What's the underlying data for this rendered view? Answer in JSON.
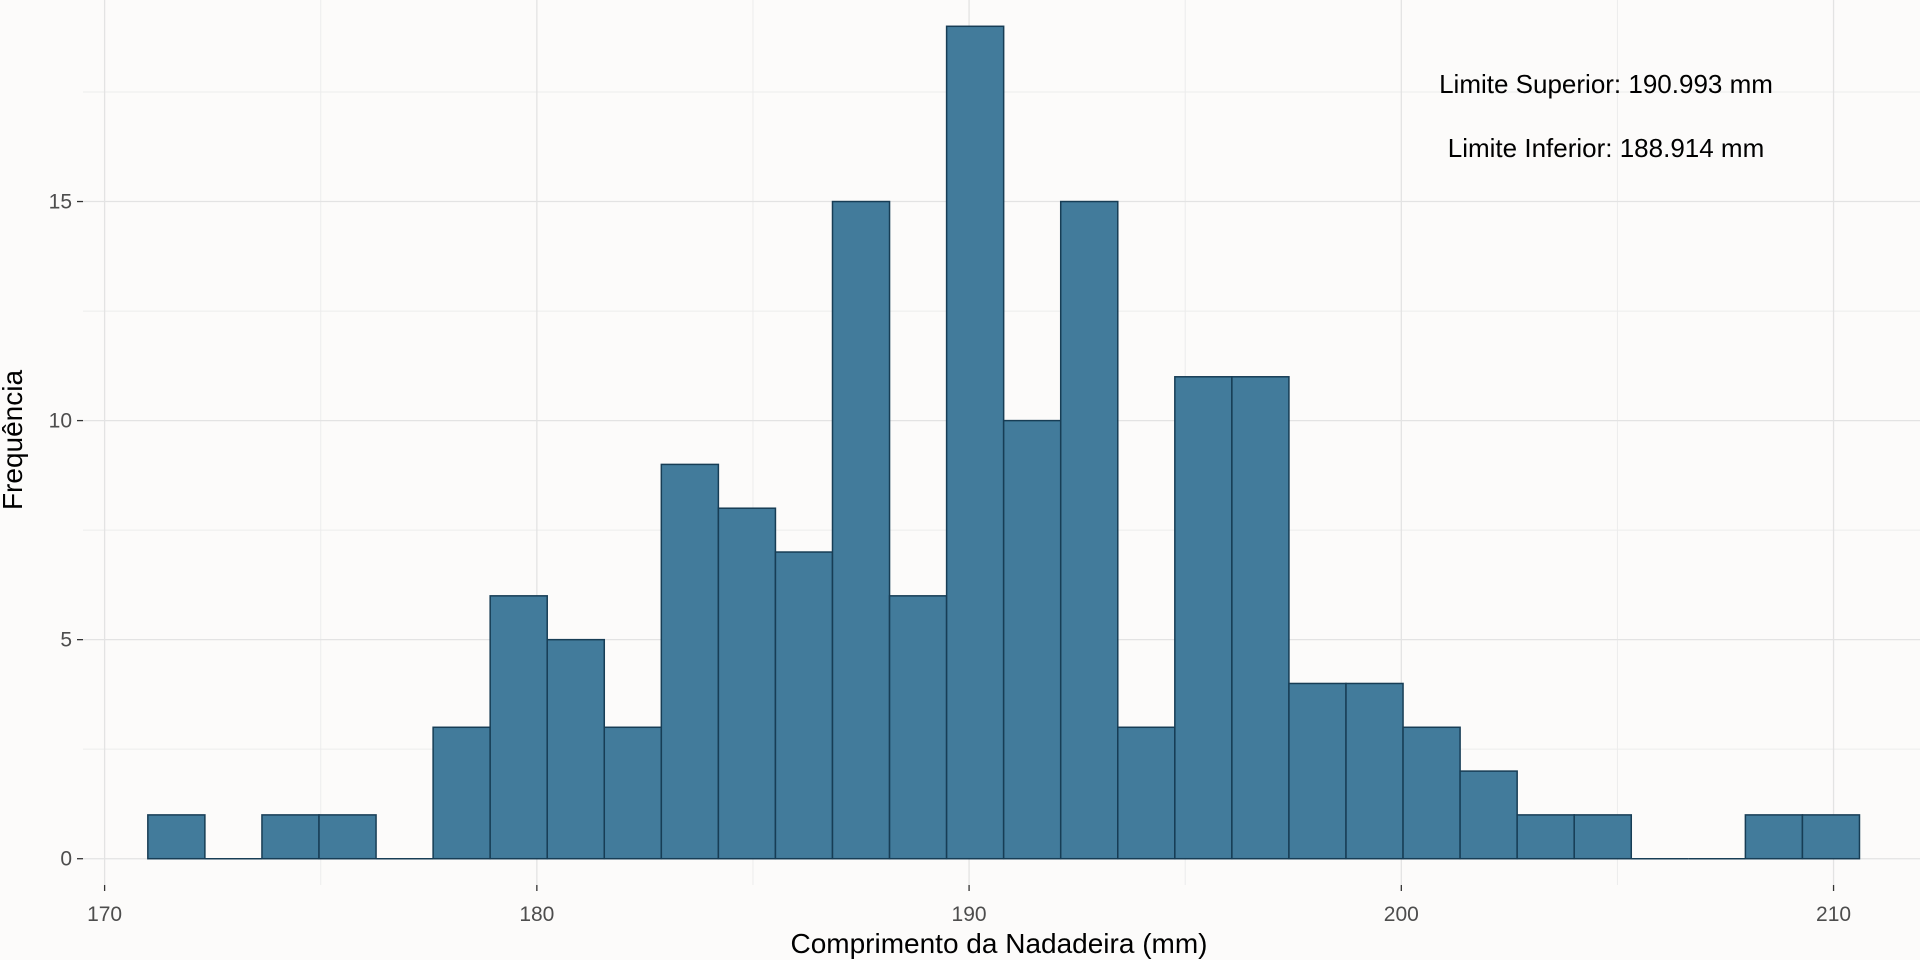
{
  "chart_data": {
    "type": "bar",
    "subtype": "histogram",
    "title": "",
    "xlabel": "Comprimento da Nadadeira (mm)",
    "ylabel": "Frequência",
    "xlim": [
      169.5,
      212.0
    ],
    "ylim": [
      -0.6,
      19.6
    ],
    "x_ticks": [
      170,
      180,
      190,
      200,
      210
    ],
    "y_ticks": [
      0,
      5,
      10,
      15
    ],
    "grid": true,
    "bin_edges": [
      171.0,
      172.32,
      173.64,
      174.96,
      176.28,
      177.6,
      178.92,
      180.24,
      181.56,
      182.88,
      184.2,
      185.52,
      186.84,
      188.16,
      189.48,
      190.8,
      192.12,
      193.44,
      194.76,
      196.08,
      197.4,
      198.72,
      200.04,
      201.36,
      202.68,
      204.0,
      205.32,
      206.64,
      207.96,
      209.28,
      210.6
    ],
    "values": [
      1,
      0,
      1,
      1,
      0,
      3,
      6,
      5,
      3,
      9,
      8,
      7,
      15,
      6,
      19,
      10,
      15,
      3,
      11,
      11,
      4,
      4,
      3,
      2,
      1,
      1,
      0,
      0,
      1,
      1
    ],
    "bar_color": "#427b9b",
    "bar_edge_color": "#173d55",
    "annotations": [
      "Limite Superior: 190.993 mm",
      "Limite Inferior: 188.914 mm"
    ]
  }
}
